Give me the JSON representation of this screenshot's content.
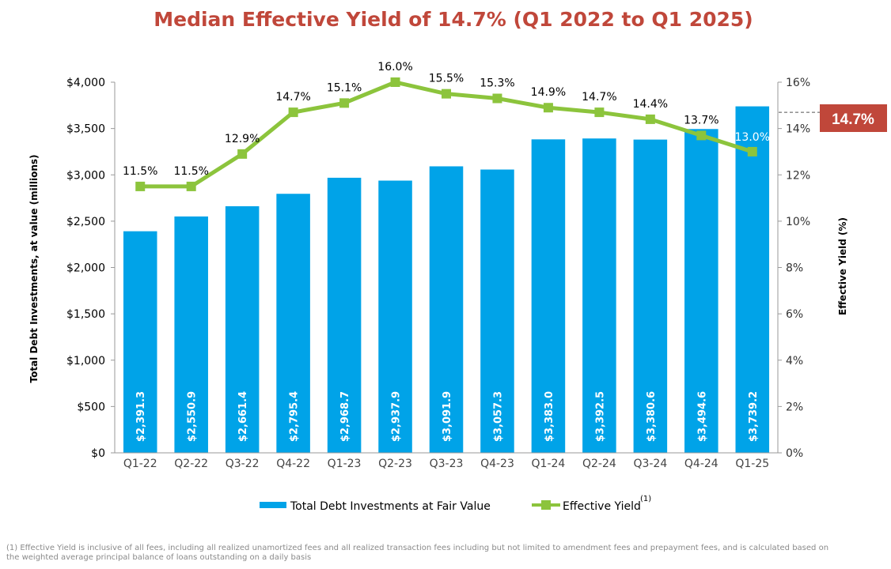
{
  "title": "Median Effective Yield of 14.7% (Q1 2022 to Q1 2025)",
  "callout": "14.7%",
  "footnote": "(1) Effective Yield is inclusive of all fees, including all realized unamortized fees and all realized transaction fees including but not limited to amendment fees and prepayment fees, and is calculated based on the weighted average principal balance of loans outstanding on a daily basis",
  "colors": {
    "bar": "#00a3e8",
    "line": "#8cc43c",
    "title": "#c0473a",
    "callout": "#c0473a"
  },
  "chart_data": {
    "type": "bar",
    "categories": [
      "Q1-22",
      "Q2-22",
      "Q3-22",
      "Q4-22",
      "Q1-23",
      "Q2-23",
      "Q3-23",
      "Q4-23",
      "Q1-24",
      "Q2-24",
      "Q3-24",
      "Q4-24",
      "Q1-25"
    ],
    "series": [
      {
        "name": "Total Debt Investments at Fair Value",
        "type": "bar",
        "axis": "left",
        "values": [
          2391.3,
          2550.9,
          2661.4,
          2795.4,
          2968.7,
          2937.9,
          3091.9,
          3057.3,
          3383.0,
          3392.5,
          3380.6,
          3494.6,
          3739.2
        ],
        "labels": [
          "$2,391.3",
          "$2,550.9",
          "$2,661.4",
          "$2,795.4",
          "$2,968.7",
          "$2,937.9",
          "$3,091.9",
          "$3,057.3",
          "$3,383.0",
          "$3,392.5",
          "$3,380.6",
          "$3,494.6",
          "$3,739.2"
        ]
      },
      {
        "name": "Effective Yield",
        "type": "line",
        "axis": "right",
        "legend_sup": "(1)",
        "values": [
          11.5,
          11.5,
          12.9,
          14.7,
          15.1,
          16.0,
          15.5,
          15.3,
          14.9,
          14.7,
          14.4,
          13.7,
          13.0
        ],
        "labels": [
          "11.5%",
          "11.5%",
          "12.9%",
          "14.7%",
          "15.1%",
          "16.0%",
          "15.5%",
          "15.3%",
          "14.9%",
          "14.7%",
          "14.4%",
          "13.7%",
          "13.0%"
        ]
      }
    ],
    "ylabel": "Total Debt Investments, at value  (millions)",
    "y2label": "Effective Yield (%)",
    "ylim": [
      0,
      4000
    ],
    "y2lim": [
      0,
      16
    ],
    "yticks": [
      "$0",
      "$500",
      "$1,000",
      "$1,500",
      "$2,000",
      "$2,500",
      "$3,000",
      "$3,500",
      "$4,000"
    ],
    "y2ticks": [
      "0%",
      "2%",
      "4%",
      "6%",
      "8%",
      "10%",
      "12%",
      "14%",
      "16%"
    ],
    "median_line": 14.7,
    "legend_position": "bottom",
    "grid": false
  }
}
